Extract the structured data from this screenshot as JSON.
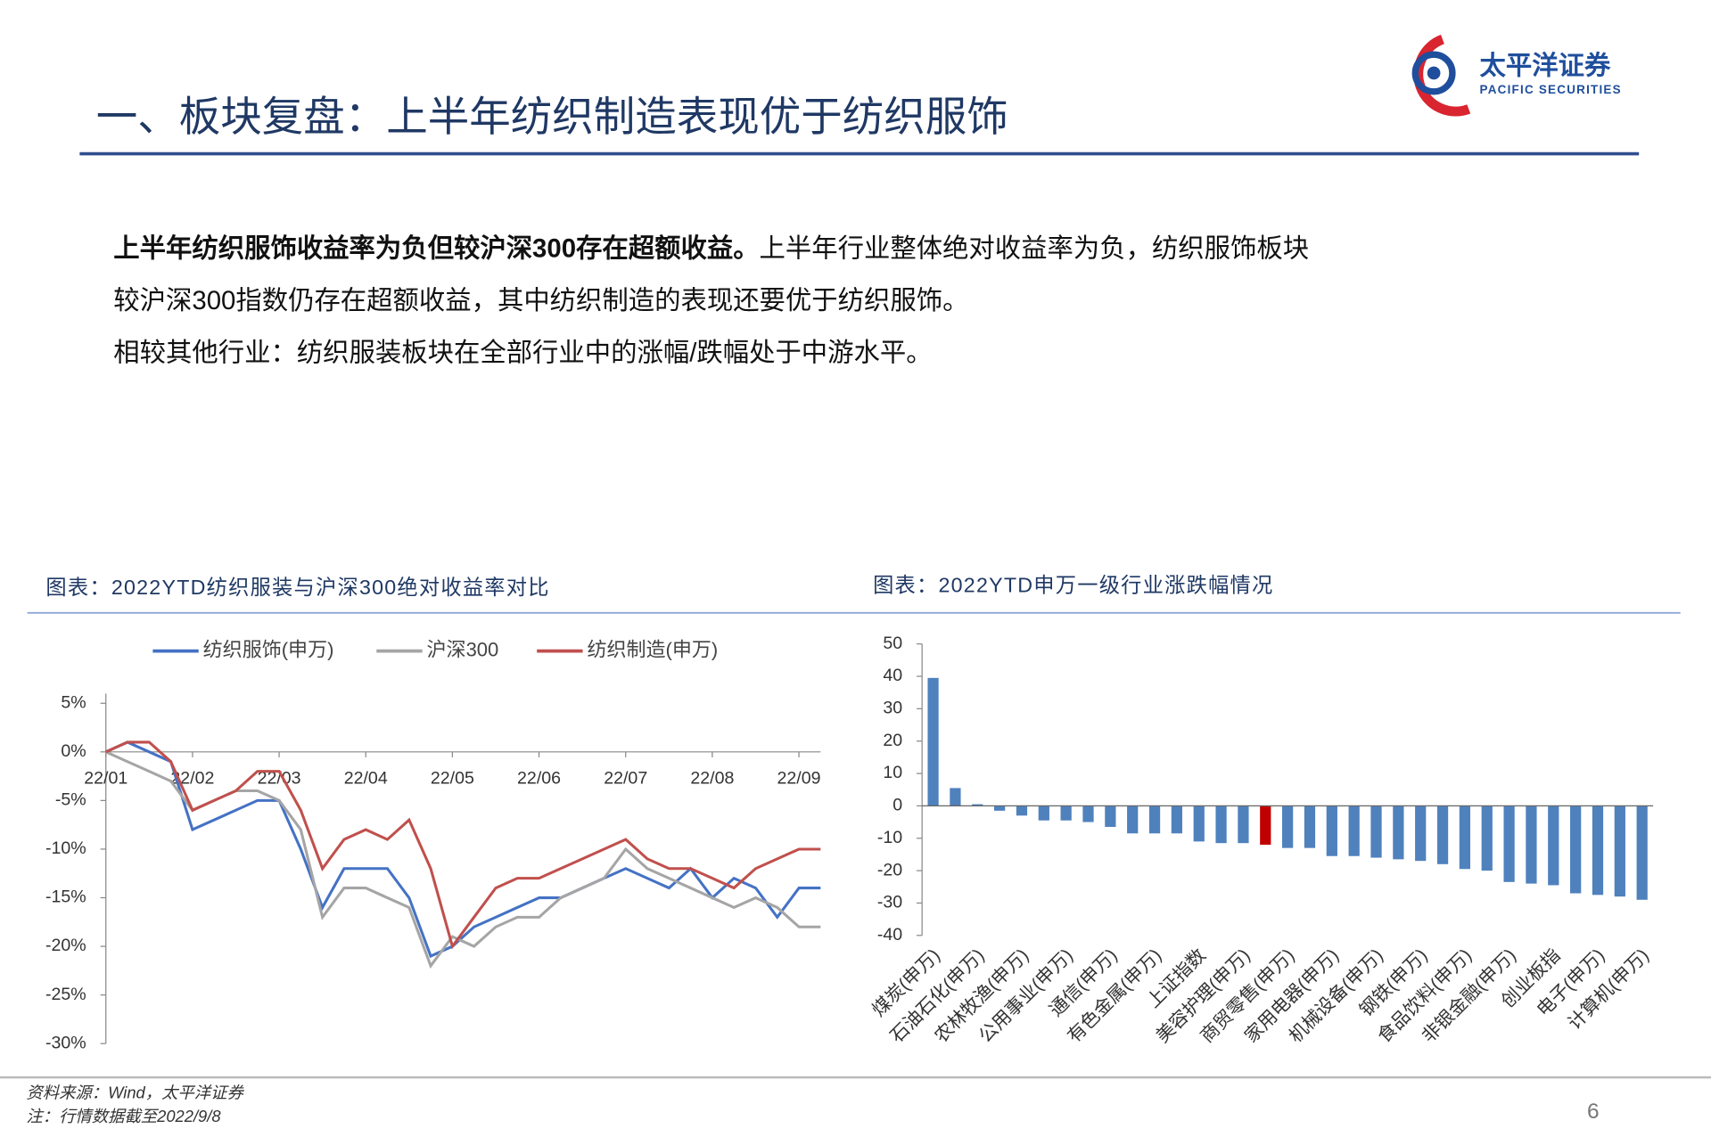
{
  "header": {
    "title": "一、板块复盘：上半年纺织制造表现优于纺织服饰",
    "logo_name": "太平洋证券",
    "logo_en": "PACIFIC SECURITIES"
  },
  "body": {
    "lead": "上半年纺织服饰收益率为负但较沪深300存在超额收益。",
    "line1": "上半年行业整体绝对收益率为负，纺织服饰板块",
    "line2": "较沪深300指数仍存在超额收益，其中纺织制造的表现还要优于纺织服饰。",
    "line3": "相较其他行业：纺织服装板块在全部行业中的涨幅/跌幅处于中游水平。"
  },
  "chart_data": [
    {
      "type": "line",
      "title": "图表：2022YTD纺织服装与沪深300绝对收益率对比",
      "categories": [
        "22/01",
        null,
        null,
        null,
        "22/02",
        null,
        null,
        null,
        "22/03",
        null,
        null,
        null,
        "22/04",
        null,
        null,
        null,
        "22/05",
        null,
        null,
        null,
        "22/06",
        null,
        null,
        null,
        "22/07",
        null,
        null,
        null,
        "22/08",
        null,
        null,
        null,
        "22/09",
        null
      ],
      "series": [
        {
          "name": "纺织服饰(申万)",
          "color": "#4472c4",
          "values": [
            0,
            1,
            0,
            -1,
            -8,
            -7,
            -6,
            -5,
            -5,
            -10,
            -16,
            -12,
            -12,
            -12,
            -15,
            -21,
            -20,
            -18,
            -17,
            -16,
            -15,
            -15,
            -14,
            -13,
            -12,
            -13,
            -14,
            -12,
            -15,
            -13,
            -14,
            -17,
            -14,
            -14
          ]
        },
        {
          "name": "沪深300",
          "color": "#a5a5a5",
          "values": [
            0,
            -1,
            -2,
            -3,
            -6,
            -5,
            -4,
            -4,
            -5,
            -8,
            -17,
            -14,
            -14,
            -15,
            -16,
            -22,
            -19,
            -20,
            -18,
            -17,
            -17,
            -15,
            -14,
            -13,
            -10,
            -12,
            -13,
            -14,
            -15,
            -16,
            -15,
            -16,
            -18,
            -18
          ]
        },
        {
          "name": "纺织制造(申万)",
          "color": "#c0504d",
          "values": [
            0,
            1,
            1,
            -1,
            -6,
            -5,
            -4,
            -2,
            -2,
            -6,
            -12,
            -9,
            -8,
            -9,
            -7,
            -12,
            -20,
            -17,
            -14,
            -13,
            -13,
            -12,
            -11,
            -10,
            -9,
            -11,
            -12,
            -12,
            -13,
            -14,
            -12,
            -11,
            -10,
            -10
          ]
        }
      ],
      "ylim": [
        -30,
        6
      ],
      "yticks": [
        {
          "value": 5,
          "label": "5%"
        },
        {
          "value": 0,
          "label": "0%"
        },
        {
          "value": -5,
          "label": "-5%"
        },
        {
          "value": -10,
          "label": "-10%"
        },
        {
          "value": -15,
          "label": "-15%"
        },
        {
          "value": -20,
          "label": "-20%"
        },
        {
          "value": -25,
          "label": "-25%"
        },
        {
          "value": -30,
          "label": "-30%"
        }
      ],
      "legend": "top",
      "grid": false
    },
    {
      "type": "bar",
      "title": "图表：2022YTD申万一级行业涨跌幅情况",
      "categories": [
        "煤炭(申万)",
        null,
        "石油石化(申万)",
        null,
        "农林牧渔(申万)",
        null,
        "公用事业(申万)",
        null,
        "通信(申万)",
        null,
        "有色金属(申万)",
        null,
        "上证指数",
        null,
        "美容护理(申万)",
        null,
        "商贸零售(申万)",
        null,
        "家用电器(申万)",
        null,
        "机械设备(申万)",
        null,
        "钢铁(申万)",
        null,
        "食品饮料(申万)",
        null,
        "非银金融(申万)",
        null,
        "创业板指",
        null,
        "电子(申万)",
        null,
        "计算机(申万)"
      ],
      "values": [
        39.5,
        5.5,
        0.5,
        -1.5,
        -3,
        -4.5,
        -4.5,
        -5,
        -6.5,
        -8.5,
        -8.5,
        -8.5,
        -11,
        -11.5,
        -11.5,
        -12,
        -13,
        -13,
        -15.5,
        -15.5,
        -16,
        -16.5,
        -17,
        -18,
        -19.5,
        -20,
        -23.5,
        -24,
        -24.5,
        -27,
        -27.5,
        -28,
        -29
      ],
      "colors": [
        "#4f81bd",
        "#4f81bd",
        "#4f81bd",
        "#4f81bd",
        "#4f81bd",
        "#4f81bd",
        "#4f81bd",
        "#4f81bd",
        "#4f81bd",
        "#4f81bd",
        "#4f81bd",
        "#4f81bd",
        "#4f81bd",
        "#4f81bd",
        "#4f81bd",
        "#c00000",
        "#4f81bd",
        "#4f81bd",
        "#4f81bd",
        "#4f81bd",
        "#4f81bd",
        "#4f81bd",
        "#4f81bd",
        "#4f81bd",
        "#4f81bd",
        "#4f81bd",
        "#4f81bd",
        "#4f81bd",
        "#4f81bd",
        "#4f81bd",
        "#4f81bd",
        "#4f81bd",
        "#4f81bd"
      ],
      "ylim": [
        -40,
        50
      ],
      "yticks": [
        50,
        40,
        30,
        20,
        10,
        0,
        -10,
        -20,
        -30,
        -40
      ],
      "grid": false
    }
  ],
  "footer": {
    "source": "资料来源：Wind，太平洋证券",
    "note": "注：行情数据截至2022/9/8",
    "page": 6
  }
}
